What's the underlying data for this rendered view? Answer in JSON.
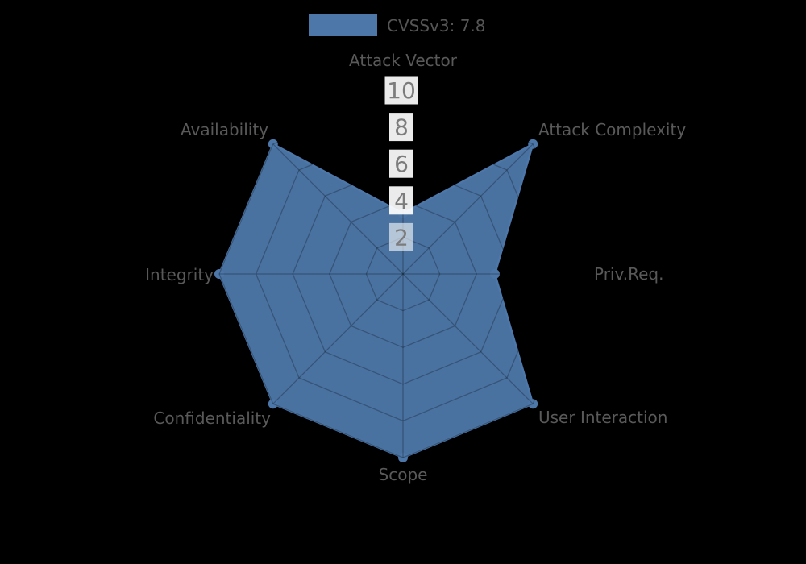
{
  "figure": {
    "background": "#000000"
  },
  "legend": {
    "label": "CVSSv3: 7.8",
    "swatch_color": "#4c77a8",
    "text_color": "#555555"
  },
  "chart_data": {
    "type": "radar",
    "title": "",
    "categories": [
      "Attack Vector",
      "Attack Complexity",
      "Priv.Req.",
      "User Interaction",
      "Scope",
      "Confidentiality",
      "Integrity",
      "Availability"
    ],
    "series": [
      {
        "name": "CVSSv3: 7.8",
        "values": [
          3.3,
          10,
          5,
          10,
          10,
          10,
          10,
          10
        ],
        "color": "#4c77a8"
      }
    ],
    "radial_ticks": [
      2,
      4,
      6,
      8,
      10
    ],
    "r_max": 10,
    "grid": "on",
    "grid_shape": "polygon",
    "legend_position": "top-center",
    "axis_label_color": "#595959",
    "tick_label_color": "#7c7c7c",
    "tick_box_color": "#ffffff"
  }
}
